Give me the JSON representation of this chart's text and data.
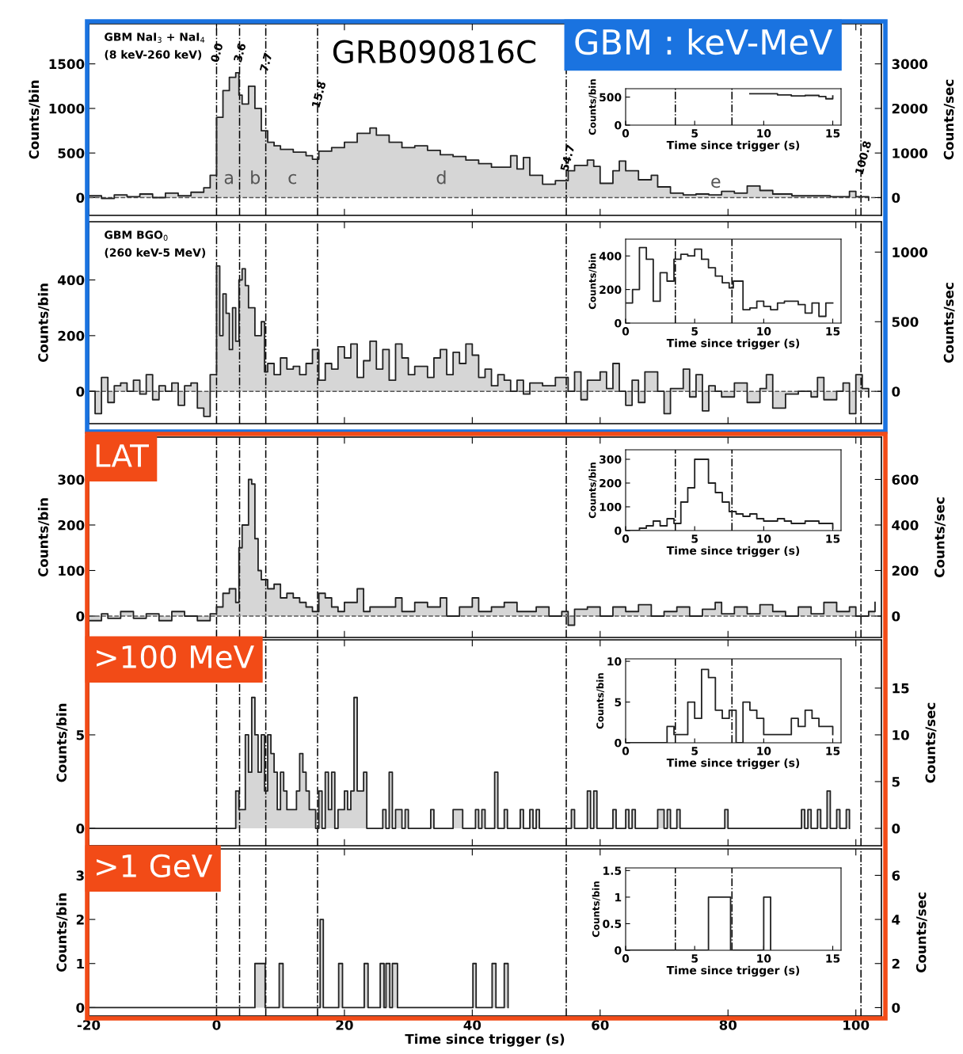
{
  "chart_data": [
    {
      "type": "step",
      "title": "GRB090816C",
      "subtitle": "GBM : keV-MeV",
      "ylabel": "Counts/bin",
      "y2label": "Counts/sec",
      "series": [
        {
          "color": "#222222",
          "x": [
            -20,
            -18,
            -16,
            -14,
            -12,
            -10,
            -8,
            -6,
            -4,
            -2,
            -1,
            0,
            1,
            2,
            3,
            3.5,
            4,
            5,
            6,
            7,
            8,
            9,
            10,
            12,
            14,
            15,
            16,
            18,
            20,
            22,
            24,
            25,
            27,
            29,
            31,
            33,
            35,
            37,
            39,
            41,
            43,
            45,
            46,
            47,
            48,
            49,
            51,
            53,
            55,
            56,
            58,
            59,
            60,
            62,
            63,
            64,
            66,
            68,
            69,
            71,
            73,
            75,
            77,
            79,
            81,
            83,
            85,
            87,
            90,
            93,
            96,
            99,
            100,
            102
          ],
          "values": [
            20,
            -10,
            30,
            10,
            40,
            0,
            50,
            20,
            60,
            110,
            250,
            900,
            1200,
            1350,
            1400,
            1150,
            1050,
            1250,
            1000,
            750,
            620,
            580,
            540,
            510,
            470,
            430,
            520,
            560,
            620,
            720,
            780,
            700,
            620,
            560,
            580,
            530,
            480,
            460,
            420,
            380,
            340,
            340,
            470,
            320,
            450,
            250,
            150,
            190,
            300,
            360,
            420,
            350,
            160,
            300,
            410,
            300,
            200,
            250,
            120,
            50,
            30,
            40,
            30,
            70,
            50,
            130,
            80,
            40,
            20,
            20,
            10,
            70,
            10,
            -30
          ]
        }
      ],
      "xlim": [
        -20,
        104
      ],
      "xticks": [
        -20,
        0,
        20,
        40,
        60,
        80,
        100
      ],
      "ylim": [
        -200,
        1950
      ],
      "yticks": [
        0,
        500,
        1000,
        1500
      ],
      "y2lim": [
        -400,
        3900
      ],
      "y2ticks": [
        0,
        1000,
        2000,
        3000
      ],
      "tick_labels": "y",
      "ref_lines": [
        {
          "axis": "x",
          "value": 0.0,
          "label": "0.0",
          "line_style": "dashdot",
          "color": "#000000"
        },
        {
          "axis": "x",
          "value": 3.6,
          "label": "3.6",
          "line_style": "dashdot",
          "color": "#000000"
        },
        {
          "axis": "x",
          "value": 7.7,
          "label": "7.7",
          "line_style": "dashdot",
          "color": "#000000"
        },
        {
          "axis": "x",
          "value": 15.8,
          "label": "15.8",
          "line_style": "dashdot",
          "color": "#000000"
        },
        {
          "axis": "x",
          "value": 54.7,
          "label": "54.7",
          "line_style": "dashdot",
          "color": "#000000"
        },
        {
          "axis": "x",
          "value": 100.8,
          "label": "100.8",
          "line_style": "dashdot",
          "color": "#000000"
        },
        {
          "axis": "y",
          "value": 0,
          "line_style": "dashed",
          "color": "#555555"
        }
      ],
      "annotations": [
        "GBM NaI$_{3}$ + NaI$_{4}$",
        "(8 keV-260 keV)",
        "a",
        "b",
        "c",
        "d",
        "e"
      ]
    },
    {
      "type": "step",
      "xlabel": "Time since trigger (s)",
      "ylabel": "Counts/bin",
      "series": [
        {
          "color": "#222222",
          "x": [
            9,
            10,
            11,
            12,
            13,
            14,
            14.5,
            15
          ],
          "values": [
            560,
            560,
            540,
            520,
            530,
            510,
            470,
            520
          ]
        }
      ],
      "xlim": [
        0,
        15.6
      ],
      "xticks": [
        0,
        5,
        10,
        15
      ],
      "ylim": [
        0,
        650
      ],
      "yticks": [
        0,
        500
      ],
      "ref_lines": [
        {
          "axis": "x",
          "value": 3.6,
          "line_style": "dashdot",
          "color": "#000000"
        },
        {
          "axis": "x",
          "value": 7.7,
          "line_style": "dashdot",
          "color": "#000000"
        }
      ]
    },
    {
      "type": "step",
      "ylabel": "Counts/bin",
      "y2label": "Counts/sec",
      "series": [
        {
          "color": "#222222",
          "x": [
            -20,
            -19,
            -18,
            -17,
            -16,
            -15,
            -14,
            -13,
            -12,
            -11,
            -10,
            -9,
            -8,
            -7,
            -6,
            -5,
            -4,
            -3,
            -2,
            -1,
            0,
            0.5,
            1,
            1.5,
            2,
            2.5,
            3,
            3.5,
            4,
            4.5,
            5,
            6,
            7,
            7.5,
            8,
            9,
            10,
            11,
            12,
            13,
            14,
            15,
            16,
            17,
            18,
            19,
            20,
            21,
            22,
            23,
            24,
            25,
            26,
            27,
            28,
            29,
            30,
            31,
            33,
            34,
            35,
            36,
            37,
            38,
            39,
            40,
            41,
            42,
            43,
            44,
            45,
            46,
            47,
            48,
            49,
            51,
            53,
            55,
            56,
            57,
            58,
            60,
            61,
            62,
            63,
            64,
            65,
            66,
            67,
            69,
            70,
            71,
            73,
            74,
            75,
            76,
            77,
            78,
            79,
            81,
            83,
            85,
            86,
            87,
            89,
            91,
            93,
            94,
            95,
            97,
            98,
            99,
            100,
            101,
            102
          ],
          "values": [
            0,
            -80,
            50,
            -40,
            20,
            30,
            0,
            40,
            -10,
            60,
            -30,
            20,
            0,
            30,
            -50,
            20,
            30,
            -60,
            -90,
            60,
            450,
            200,
            350,
            280,
            150,
            300,
            180,
            400,
            440,
            380,
            300,
            200,
            250,
            70,
            100,
            60,
            120,
            80,
            90,
            60,
            100,
            150,
            40,
            100,
            80,
            160,
            120,
            170,
            50,
            110,
            180,
            80,
            150,
            40,
            170,
            120,
            60,
            90,
            50,
            120,
            150,
            60,
            140,
            100,
            170,
            130,
            50,
            80,
            20,
            60,
            40,
            0,
            40,
            -10,
            30,
            20,
            50,
            0,
            70,
            -30,
            40,
            70,
            10,
            100,
            0,
            -50,
            40,
            -40,
            70,
            0,
            -80,
            10,
            80,
            -20,
            60,
            -70,
            20,
            0,
            -20,
            30,
            -40,
            10,
            60,
            -60,
            -10,
            0,
            -20,
            50,
            -30,
            0,
            30,
            -80,
            60,
            10,
            -20
          ]
        }
      ],
      "xlim": [
        -20,
        104
      ],
      "xticks": [
        -20,
        0,
        20,
        40,
        60,
        80,
        100
      ],
      "ylim": [
        -116,
        609
      ],
      "yticks": [
        0,
        200,
        400
      ],
      "y2lim": [
        -232,
        1218
      ],
      "y2ticks": [
        0,
        500,
        1000
      ],
      "tick_labels": "y",
      "ref_lines": [
        {
          "axis": "x",
          "value": 0.0,
          "line_style": "dashdot",
          "color": "#000000"
        },
        {
          "axis": "x",
          "value": 3.6,
          "line_style": "dashdot",
          "color": "#000000"
        },
        {
          "axis": "x",
          "value": 7.7,
          "line_style": "dashdot",
          "color": "#000000"
        },
        {
          "axis": "x",
          "value": 15.8,
          "line_style": "dashdot",
          "color": "#000000"
        },
        {
          "axis": "x",
          "value": 54.7,
          "line_style": "dashdot",
          "color": "#000000"
        },
        {
          "axis": "x",
          "value": 100.8,
          "line_style": "dashdot",
          "color": "#000000"
        },
        {
          "axis": "y",
          "value": 0,
          "line_style": "dashed",
          "color": "#555555"
        }
      ],
      "annotations": [
        "GBM BGO$_{0}$",
        "(260 keV-5 MeV)"
      ]
    },
    {
      "type": "step",
      "xlabel": "Time since trigger (s)",
      "ylabel": "Counts/bin",
      "series": [
        {
          "color": "#222222",
          "x": [
            0,
            0.5,
            1,
            1.5,
            2,
            2.5,
            3,
            3.5,
            4,
            4.5,
            5,
            5.5,
            6,
            6.5,
            7,
            7.5,
            7.8,
            8.5,
            9,
            9.5,
            10,
            10.5,
            11,
            11.5,
            12.5,
            13,
            13.5,
            14,
            14.5,
            15
          ],
          "values": [
            120,
            200,
            450,
            380,
            130,
            300,
            250,
            380,
            410,
            400,
            440,
            380,
            330,
            280,
            240,
            210,
            250,
            80,
            90,
            130,
            100,
            80,
            120,
            130,
            110,
            60,
            120,
            40,
            120,
            120
          ]
        }
      ],
      "xlim": [
        0,
        15.6
      ],
      "xticks": [
        0,
        5,
        10,
        15
      ],
      "ylim": [
        0,
        500
      ],
      "yticks": [
        0,
        200,
        400
      ],
      "ref_lines": [
        {
          "axis": "x",
          "value": 3.6,
          "line_style": "dashdot",
          "color": "#000000"
        },
        {
          "axis": "x",
          "value": 7.7,
          "line_style": "dashdot",
          "color": "#000000"
        }
      ]
    },
    {
      "type": "step",
      "subtitle": "LAT",
      "ylabel": "Counts/bin",
      "y2label": "Counts/sec",
      "series": [
        {
          "color": "#222222",
          "x": [
            -20,
            -18,
            -17,
            -15,
            -13,
            -11,
            -9,
            -7,
            -5,
            -3,
            -1,
            0,
            1,
            2,
            3,
            3.5,
            4,
            5,
            5.5,
            6,
            6.5,
            7,
            8,
            9,
            10,
            11,
            12,
            13,
            14,
            15,
            16,
            17,
            18,
            19,
            20,
            22,
            23,
            24,
            26,
            28,
            29,
            31,
            33,
            35,
            36,
            38,
            40,
            41,
            43,
            45,
            47,
            50,
            52,
            54,
            55,
            56,
            58,
            60,
            62,
            64,
            66,
            68,
            70,
            72,
            74,
            76,
            78,
            79,
            81,
            83,
            85,
            87,
            89,
            91,
            93,
            95,
            97,
            99,
            100,
            102,
            103
          ],
          "values": [
            -10,
            5,
            -5,
            10,
            -5,
            5,
            -10,
            10,
            0,
            -10,
            5,
            20,
            50,
            60,
            30,
            150,
            200,
            300,
            290,
            170,
            100,
            80,
            60,
            70,
            40,
            50,
            40,
            30,
            20,
            10,
            50,
            40,
            20,
            10,
            30,
            60,
            10,
            20,
            20,
            40,
            10,
            30,
            20,
            40,
            0,
            20,
            40,
            10,
            20,
            30,
            10,
            20,
            0,
            10,
            -20,
            15,
            20,
            0,
            20,
            10,
            25,
            0,
            10,
            20,
            0,
            15,
            30,
            5,
            20,
            5,
            25,
            10,
            0,
            20,
            5,
            30,
            10,
            20,
            0,
            10,
            30
          ]
        }
      ],
      "xlim": [
        -20,
        104
      ],
      "xticks": [
        -20,
        0,
        20,
        40,
        60,
        80,
        100
      ],
      "ylim": [
        -47,
        393
      ],
      "yticks": [
        0,
        100,
        200,
        300
      ],
      "y2lim": [
        -94,
        786
      ],
      "y2ticks": [
        0,
        200,
        400,
        600
      ],
      "tick_labels": "y",
      "ref_lines": [
        {
          "axis": "x",
          "value": 0.0,
          "line_style": "dashdot",
          "color": "#000000"
        },
        {
          "axis": "x",
          "value": 3.6,
          "line_style": "dashdot",
          "color": "#000000"
        },
        {
          "axis": "x",
          "value": 7.7,
          "line_style": "dashdot",
          "color": "#000000"
        },
        {
          "axis": "x",
          "value": 15.8,
          "line_style": "dashdot",
          "color": "#000000"
        },
        {
          "axis": "x",
          "value": 54.7,
          "line_style": "dashdot",
          "color": "#000000"
        },
        {
          "axis": "x",
          "value": 100.8,
          "line_style": "dashdot",
          "color": "#000000"
        },
        {
          "axis": "y",
          "value": 0,
          "line_style": "dashed",
          "color": "#555555"
        }
      ]
    },
    {
      "type": "step",
      "xlabel": "Time since trigger (s)",
      "ylabel": "Counts/bin",
      "series": [
        {
          "color": "#222222",
          "x": [
            0,
            1,
            1.5,
            2,
            2.5,
            3,
            3.5,
            4,
            4.5,
            5,
            6,
            6.5,
            7,
            7.5,
            8,
            8.5,
            9,
            9.5,
            10,
            11,
            11.5,
            12,
            13,
            14,
            15
          ],
          "values": [
            0,
            10,
            20,
            40,
            20,
            50,
            30,
            120,
            180,
            300,
            200,
            160,
            120,
            80,
            70,
            60,
            70,
            50,
            40,
            50,
            40,
            30,
            40,
            30,
            10
          ]
        }
      ],
      "xlim": [
        0,
        15.6
      ],
      "xticks": [
        0,
        5,
        10,
        15
      ],
      "ylim": [
        0,
        340
      ],
      "yticks": [
        0,
        100,
        200,
        300
      ],
      "ref_lines": [
        {
          "axis": "x",
          "value": 3.6,
          "line_style": "dashdot",
          "color": "#000000"
        },
        {
          "axis": "x",
          "value": 7.7,
          "line_style": "dashdot",
          "color": "#000000"
        }
      ]
    },
    {
      "type": "step",
      "subtitle": ">100 MeV",
      "ylabel": "Counts/bin",
      "y2label": "Counts/sec",
      "series": [
        {
          "color": "#222222",
          "x": [
            -20,
            3.0,
            3.5,
            4.0,
            4.5,
            5.0,
            5.5,
            6.0,
            6.5,
            7.0,
            7.5,
            8.0,
            8.5,
            9.0,
            9.5,
            10.0,
            10.5,
            11.0,
            11.5,
            12.0,
            12.5,
            13.0,
            13.5,
            14.0,
            14.5,
            15.0,
            15.5,
            16.0,
            16.5,
            17.0,
            17.5,
            18.0,
            18.5,
            19.0,
            19.5,
            20.0,
            20.5,
            21.0,
            21.5,
            22.0,
            22.5,
            23.0,
            23.5,
            26,
            26.5,
            27,
            27.5,
            28,
            28.5,
            29,
            29.5,
            30,
            33.5,
            34,
            37,
            38.5,
            40.5,
            41,
            41.5,
            42,
            43.5,
            44,
            45,
            45.5,
            47.5,
            48,
            49,
            49.5,
            50,
            50.5,
            55.5,
            56,
            58,
            58.5,
            59,
            59.5,
            62,
            62.5,
            64,
            64.5,
            65,
            65.5,
            69,
            69.5,
            70,
            70.5,
            71,
            72,
            72.5,
            79.5,
            80,
            91.5,
            92,
            92.5,
            93,
            94,
            94.5,
            95.5,
            96,
            97,
            97.5,
            98.5,
            99
          ],
          "values": [
            0,
            2,
            1,
            1,
            5,
            3,
            7,
            5,
            3,
            5,
            2,
            5,
            4,
            3,
            1,
            3,
            2,
            1,
            1,
            1,
            2,
            4,
            3,
            2,
            1,
            1,
            0,
            2,
            0,
            3,
            1,
            3,
            0,
            1,
            1,
            2,
            1,
            2,
            7,
            2,
            2,
            3,
            0,
            1,
            0,
            3,
            0,
            1,
            1,
            0,
            1,
            0,
            1,
            0,
            1,
            0,
            1,
            0,
            1,
            0,
            3,
            0,
            1,
            0,
            1,
            0,
            1,
            0,
            1,
            0,
            1,
            0,
            2,
            0,
            2,
            0,
            1,
            0,
            1,
            0,
            1,
            0,
            1,
            1,
            0,
            1,
            0,
            1,
            0,
            1,
            0,
            1,
            0,
            1,
            0,
            1,
            0,
            2,
            0,
            1,
            0,
            1,
            0
          ]
        }
      ],
      "xlim": [
        -20,
        104
      ],
      "xticks": [
        -20,
        0,
        20,
        40,
        60,
        80,
        100
      ],
      "ylim": [
        -0.93,
        10.08
      ],
      "yticks": [
        0,
        5
      ],
      "y2lim": [
        -1.86,
        20.16
      ],
      "y2ticks": [
        0,
        5,
        10,
        15
      ],
      "tick_labels": "y",
      "ref_lines": [
        {
          "axis": "x",
          "value": 0.0,
          "line_style": "dashdot",
          "color": "#000000"
        },
        {
          "axis": "x",
          "value": 3.6,
          "line_style": "dashdot",
          "color": "#000000"
        },
        {
          "axis": "x",
          "value": 7.7,
          "line_style": "dashdot",
          "color": "#000000"
        },
        {
          "axis": "x",
          "value": 15.8,
          "line_style": "dashdot",
          "color": "#000000"
        },
        {
          "axis": "x",
          "value": 54.7,
          "line_style": "dashdot",
          "color": "#000000"
        },
        {
          "axis": "x",
          "value": 100.8,
          "line_style": "dashdot",
          "color": "#000000"
        }
      ]
    },
    {
      "type": "step",
      "xlabel": "Time since trigger (s)",
      "ylabel": "Counts/bin",
      "series": [
        {
          "color": "#222222",
          "x": [
            0,
            3,
            3.5,
            4.5,
            5,
            5.5,
            6,
            6.5,
            7,
            7.5,
            8,
            8.5,
            9,
            9.5,
            10,
            12,
            12.5,
            13,
            13.5,
            14,
            15
          ],
          "values": [
            0,
            2,
            1,
            5,
            3,
            9,
            8,
            4,
            3,
            4,
            0,
            5,
            4,
            3,
            1,
            3,
            2,
            4,
            3,
            2,
            1
          ]
        }
      ],
      "xlim": [
        0,
        15.6
      ],
      "xticks": [
        0,
        5,
        10,
        15
      ],
      "ylim": [
        0,
        10.3
      ],
      "yticks": [
        0,
        5,
        10
      ],
      "ref_lines": [
        {
          "axis": "x",
          "value": 3.6,
          "line_style": "dashdot",
          "color": "#000000"
        },
        {
          "axis": "x",
          "value": 7.7,
          "line_style": "dashdot",
          "color": "#000000"
        }
      ]
    },
    {
      "type": "step",
      "subtitle": ">1 GeV",
      "xlabel": "Time since trigger (s)",
      "ylabel": "Counts/bin",
      "y2label": "Counts/sec",
      "series": [
        {
          "color": "#222222",
          "x": [
            -20,
            6.0,
            7.6,
            9.8,
            10.4,
            16.2,
            16.7,
            19.1,
            19.7,
            23.1,
            23.7,
            25.6,
            26.2,
            26.5,
            27.1,
            27.5,
            28.3,
            40.1,
            40.6,
            43.1,
            43.7,
            45.0,
            45.6
          ],
          "values": [
            0,
            1,
            0,
            1,
            0,
            2,
            0,
            1,
            0,
            1,
            0,
            1,
            0,
            1,
            0,
            1,
            0,
            1,
            0,
            1,
            0,
            1,
            0
          ]
        }
      ],
      "xlim": [
        -20,
        104
      ],
      "xticks": [
        -20,
        0,
        20,
        40,
        60,
        80,
        100
      ],
      "ylim": [
        -0.19,
        3.6
      ],
      "yticks": [
        0,
        1,
        2,
        3
      ],
      "y2lim": [
        -0.38,
        7.2
      ],
      "y2ticks": [
        0,
        2,
        4,
        6
      ],
      "ref_lines": [
        {
          "axis": "x",
          "value": 0.0,
          "line_style": "dashdot",
          "color": "#000000"
        },
        {
          "axis": "x",
          "value": 3.6,
          "line_style": "dashdot",
          "color": "#000000"
        },
        {
          "axis": "x",
          "value": 7.7,
          "line_style": "dashdot",
          "color": "#000000"
        },
        {
          "axis": "x",
          "value": 15.8,
          "line_style": "dashdot",
          "color": "#000000"
        },
        {
          "axis": "x",
          "value": 54.7,
          "line_style": "dashdot",
          "color": "#000000"
        },
        {
          "axis": "x",
          "value": 100.8,
          "line_style": "dashdot",
          "color": "#000000"
        }
      ]
    },
    {
      "type": "step",
      "xlabel": "Time since trigger (s)",
      "ylabel": "Counts/bin",
      "series": [
        {
          "color": "#222222",
          "x": [
            0,
            6.0,
            7.6,
            10.0,
            10.5
          ],
          "values": [
            0,
            1,
            0,
            1,
            0
          ]
        }
      ],
      "xlim": [
        0,
        15.6
      ],
      "xticks": [
        0,
        5,
        10,
        15
      ],
      "ylim": [
        0,
        1.55
      ],
      "yticks": [
        0,
        0.5,
        1,
        1.5
      ],
      "ref_lines": [
        {
          "axis": "x",
          "value": 3.6,
          "line_style": "dashdot",
          "color": "#000000"
        },
        {
          "axis": "x",
          "value": 7.7,
          "line_style": "dashdot",
          "color": "#000000"
        }
      ]
    }
  ]
}
